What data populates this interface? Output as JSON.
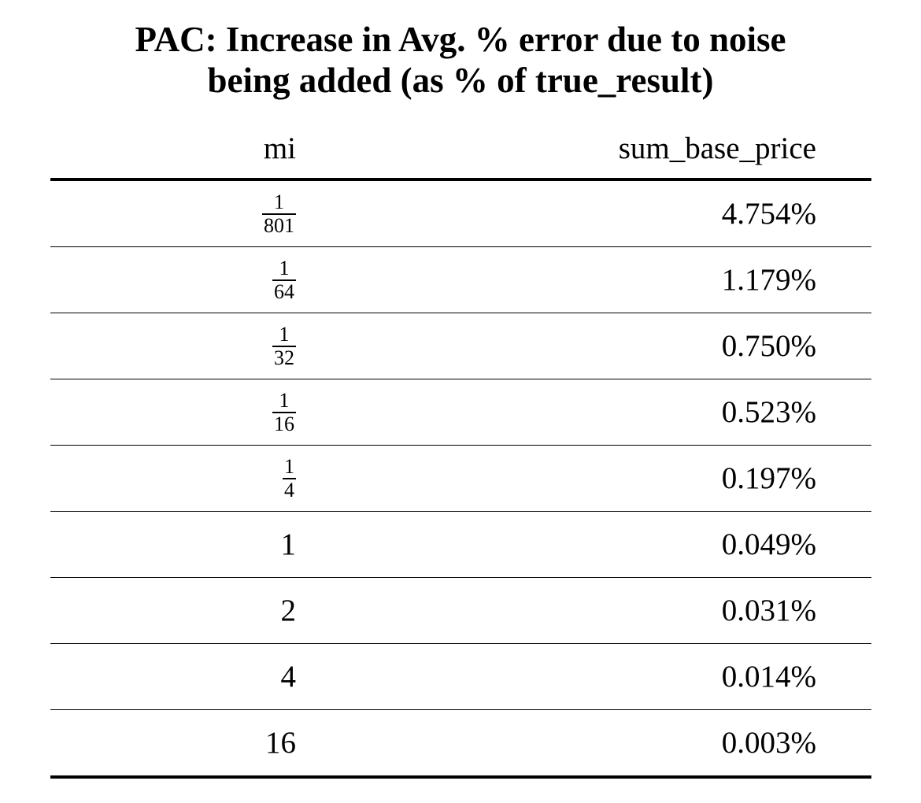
{
  "title_line1": "PAC: Increase in Avg. % error due to noise",
  "title_line2": "being added (as % of true_result)",
  "chart_data": {
    "type": "table",
    "title": "PAC: Increase in Avg. % error due to noise being added (as % of true_result)",
    "columns": [
      "mi",
      "sum_base_price"
    ],
    "rows": [
      {
        "mi": {
          "num": "1",
          "den": "801"
        },
        "sum_base_price": "4.754%"
      },
      {
        "mi": {
          "num": "1",
          "den": "64"
        },
        "sum_base_price": "1.179%"
      },
      {
        "mi": {
          "num": "1",
          "den": "32"
        },
        "sum_base_price": "0.750%"
      },
      {
        "mi": {
          "num": "1",
          "den": "16"
        },
        "sum_base_price": "0.523%"
      },
      {
        "mi": {
          "num": "1",
          "den": "4"
        },
        "sum_base_price": "0.197%"
      },
      {
        "mi": "1",
        "sum_base_price": "0.049%"
      },
      {
        "mi": "2",
        "sum_base_price": "0.031%"
      },
      {
        "mi": "4",
        "sum_base_price": "0.014%"
      },
      {
        "mi": "16",
        "sum_base_price": "0.003%"
      }
    ]
  }
}
